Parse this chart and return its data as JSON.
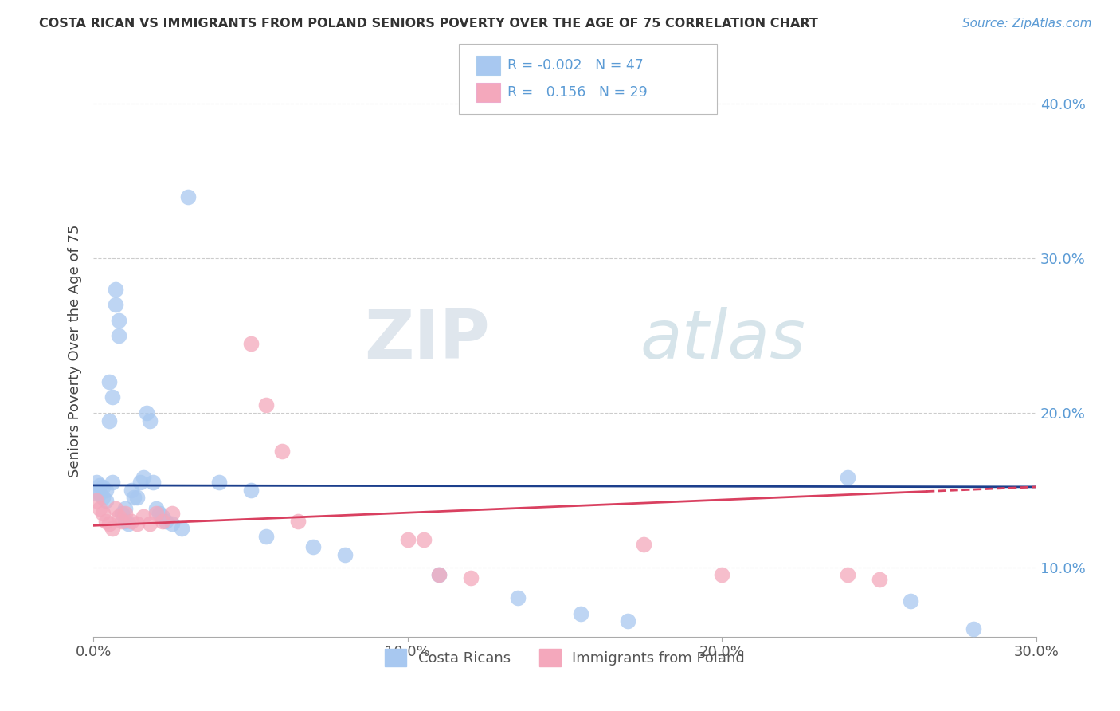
{
  "title": "COSTA RICAN VS IMMIGRANTS FROM POLAND SENIORS POVERTY OVER THE AGE OF 75 CORRELATION CHART",
  "source": "Source: ZipAtlas.com",
  "ylabel": "Seniors Poverty Over the Age of 75",
  "xlim": [
    0,
    0.3
  ],
  "ylim": [
    0.055,
    0.425
  ],
  "legend_label1": "Costa Ricans",
  "legend_label2": "Immigrants from Poland",
  "R1": "-0.002",
  "N1": "47",
  "R2": "0.156",
  "N2": "29",
  "color_blue": "#A8C8F0",
  "color_pink": "#F4A8BC",
  "line_blue": "#1C3F8C",
  "line_pink": "#D94060",
  "watermark_zip": "ZIP",
  "watermark_atlas": "atlas",
  "blue_scatter": [
    [
      0.001,
      0.155
    ],
    [
      0.001,
      0.148
    ],
    [
      0.002,
      0.153
    ],
    [
      0.002,
      0.148
    ],
    [
      0.003,
      0.152
    ],
    [
      0.003,
      0.145
    ],
    [
      0.004,
      0.15
    ],
    [
      0.004,
      0.143
    ],
    [
      0.005,
      0.22
    ],
    [
      0.005,
      0.195
    ],
    [
      0.006,
      0.21
    ],
    [
      0.006,
      0.155
    ],
    [
      0.007,
      0.27
    ],
    [
      0.007,
      0.28
    ],
    [
      0.008,
      0.26
    ],
    [
      0.008,
      0.25
    ],
    [
      0.009,
      0.135
    ],
    [
      0.01,
      0.138
    ],
    [
      0.01,
      0.13
    ],
    [
      0.011,
      0.128
    ],
    [
      0.012,
      0.15
    ],
    [
      0.013,
      0.145
    ],
    [
      0.014,
      0.145
    ],
    [
      0.015,
      0.155
    ],
    [
      0.016,
      0.158
    ],
    [
      0.017,
      0.2
    ],
    [
      0.018,
      0.195
    ],
    [
      0.019,
      0.155
    ],
    [
      0.02,
      0.138
    ],
    [
      0.021,
      0.135
    ],
    [
      0.022,
      0.133
    ],
    [
      0.023,
      0.13
    ],
    [
      0.025,
      0.128
    ],
    [
      0.028,
      0.125
    ],
    [
      0.03,
      0.34
    ],
    [
      0.04,
      0.155
    ],
    [
      0.05,
      0.15
    ],
    [
      0.055,
      0.12
    ],
    [
      0.07,
      0.113
    ],
    [
      0.08,
      0.108
    ],
    [
      0.11,
      0.095
    ],
    [
      0.135,
      0.08
    ],
    [
      0.155,
      0.07
    ],
    [
      0.17,
      0.065
    ],
    [
      0.24,
      0.158
    ],
    [
      0.26,
      0.078
    ],
    [
      0.28,
      0.06
    ]
  ],
  "pink_scatter": [
    [
      0.001,
      0.143
    ],
    [
      0.002,
      0.138
    ],
    [
      0.003,
      0.135
    ],
    [
      0.004,
      0.13
    ],
    [
      0.005,
      0.128
    ],
    [
      0.006,
      0.125
    ],
    [
      0.007,
      0.138
    ],
    [
      0.008,
      0.133
    ],
    [
      0.009,
      0.13
    ],
    [
      0.01,
      0.135
    ],
    [
      0.012,
      0.13
    ],
    [
      0.014,
      0.128
    ],
    [
      0.016,
      0.133
    ],
    [
      0.018,
      0.128
    ],
    [
      0.02,
      0.135
    ],
    [
      0.022,
      0.13
    ],
    [
      0.025,
      0.135
    ],
    [
      0.05,
      0.245
    ],
    [
      0.055,
      0.205
    ],
    [
      0.06,
      0.175
    ],
    [
      0.065,
      0.13
    ],
    [
      0.1,
      0.118
    ],
    [
      0.105,
      0.118
    ],
    [
      0.11,
      0.095
    ],
    [
      0.12,
      0.093
    ],
    [
      0.175,
      0.115
    ],
    [
      0.2,
      0.095
    ],
    [
      0.24,
      0.095
    ],
    [
      0.25,
      0.092
    ]
  ]
}
